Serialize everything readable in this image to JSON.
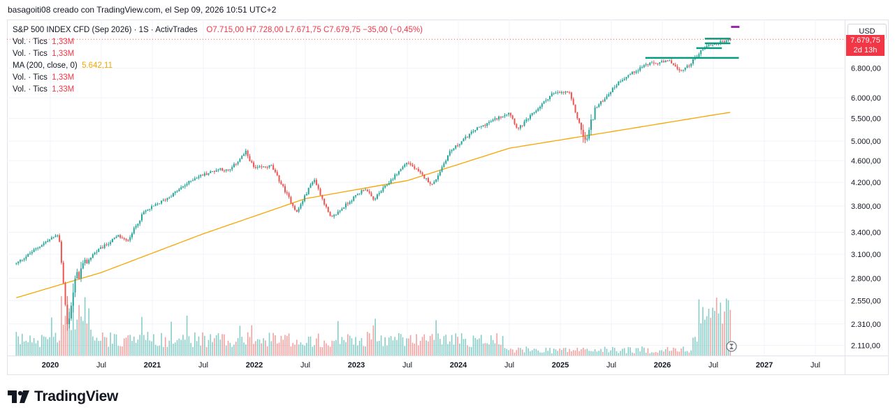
{
  "attribution": "basagoiti08 creado con TradingView.com, el Sep 09, 2026 10:51 UTC+2",
  "legend": {
    "title": "S&P 500 INDEX CFD (Sep 2026) · 1S · ActivTrades",
    "open": "O7.715,00",
    "high": "H7.728,00",
    "low": "L7.671,75",
    "close": "C7.679,75",
    "change": "−35,00 (−0,45%)",
    "vol_label": "Vol. · Tics",
    "vol_value": "1,33M",
    "ma_label": "MA (200, close, 0)",
    "ma_value": "5.642,11"
  },
  "currency_button": "USD",
  "countdown": "2d 13h",
  "brand_name": "TradingView",
  "colors": {
    "up": "#26a69a",
    "down": "#ef5350",
    "ma": "#f7a600",
    "level": "#089981",
    "marker": "#9c27b0"
  },
  "chart_data": {
    "type": "candlestick",
    "title": "S&P 500 INDEX CFD (Sep 2026)",
    "timeframe": "1S",
    "scale": "log",
    "y_ticks": [
      2110,
      2310,
      2550,
      2800,
      3100,
      3400,
      3800,
      4200,
      4600,
      5000,
      5500,
      6000,
      6800
    ],
    "y_tick_labels": [
      "2.110,00",
      "2.310,00",
      "2.550,00",
      "2.800,00",
      "3.100,00",
      "3.400,00",
      "3.800,00",
      "4.200,00",
      "4.600,00",
      "5.000,00",
      "5.500,00",
      "6.000,00",
      "6.800,00"
    ],
    "x_ticks": [
      {
        "date": "2020-01",
        "label": "2020",
        "year": true
      },
      {
        "date": "2020-07",
        "label": "Jul",
        "year": false
      },
      {
        "date": "2021-01",
        "label": "2021",
        "year": true
      },
      {
        "date": "2021-07",
        "label": "Jul",
        "year": false
      },
      {
        "date": "2022-01",
        "label": "2022",
        "year": true
      },
      {
        "date": "2022-07",
        "label": "Jul",
        "year": false
      },
      {
        "date": "2023-01",
        "label": "2023",
        "year": true
      },
      {
        "date": "2023-07",
        "label": "Jul",
        "year": false
      },
      {
        "date": "2024-01",
        "label": "2024",
        "year": true
      },
      {
        "date": "2024-07",
        "label": "Jul",
        "year": false
      },
      {
        "date": "2025-01",
        "label": "2025",
        "year": true
      },
      {
        "date": "2025-07",
        "label": "Jul",
        "year": false
      },
      {
        "date": "2026-01",
        "label": "2026",
        "year": true
      },
      {
        "date": "2026-07",
        "label": "Jul",
        "year": false
      },
      {
        "date": "2027-01",
        "label": "2027",
        "year": true
      },
      {
        "date": "2027-07",
        "label": "Jul",
        "year": false
      }
    ],
    "price_path": [
      [
        "2019-09",
        2980
      ],
      [
        "2019-12",
        3230
      ],
      [
        "2020-02",
        3380
      ],
      [
        "2020-03",
        2290
      ],
      [
        "2020-04",
        2800
      ],
      [
        "2020-06",
        3100
      ],
      [
        "2020-09",
        3350
      ],
      [
        "2020-10",
        3270
      ],
      [
        "2020-12",
        3700
      ],
      [
        "2021-03",
        3950
      ],
      [
        "2021-06",
        4280
      ],
      [
        "2021-09",
        4450
      ],
      [
        "2021-10",
        4400
      ],
      [
        "2021-12",
        4770
      ],
      [
        "2022-01",
        4450
      ],
      [
        "2022-03",
        4500
      ],
      [
        "2022-06",
        3700
      ],
      [
        "2022-08",
        4270
      ],
      [
        "2022-10",
        3600
      ],
      [
        "2022-12",
        3850
      ],
      [
        "2023-02",
        4100
      ],
      [
        "2023-03",
        3900
      ],
      [
        "2023-07",
        4580
      ],
      [
        "2023-10",
        4150
      ],
      [
        "2023-12",
        4780
      ],
      [
        "2024-03",
        5250
      ],
      [
        "2024-07",
        5650
      ],
      [
        "2024-08",
        5250
      ],
      [
        "2024-12",
        6100
      ],
      [
        "2025-02",
        6150
      ],
      [
        "2025-04",
        4950
      ],
      [
        "2025-05",
        5700
      ],
      [
        "2025-08",
        6450
      ],
      [
        "2025-11",
        6900
      ],
      [
        "2026-02",
        7000
      ],
      [
        "2026-03",
        6700
      ],
      [
        "2026-04",
        6850
      ],
      [
        "2026-06",
        7450
      ],
      [
        "2026-09",
        7680
      ]
    ],
    "ma_path": [
      [
        "2019-09",
        2580
      ],
      [
        "2020-07",
        2870
      ],
      [
        "2021-07",
        3380
      ],
      [
        "2022-07",
        3920
      ],
      [
        "2023-07",
        4230
      ],
      [
        "2024-07",
        4850
      ],
      [
        "2025-07",
        5200
      ],
      [
        "2026-07",
        5580
      ],
      [
        "2026-09",
        5642.11
      ]
    ],
    "levels": [
      {
        "price": 7700,
        "from": "2026-06",
        "to": "2026-09"
      },
      {
        "price": 7550,
        "from": "2026-06",
        "to": "2026-09"
      },
      {
        "price": 7400,
        "from": "2026-05",
        "to": "2026-08"
      },
      {
        "price": 7100,
        "from": "2025-11",
        "to": "2026-10"
      }
    ],
    "last": {
      "price": 7679.75,
      "change": -35.0,
      "change_pct": -0.45
    },
    "volume": {
      "last": "1,33M"
    }
  }
}
